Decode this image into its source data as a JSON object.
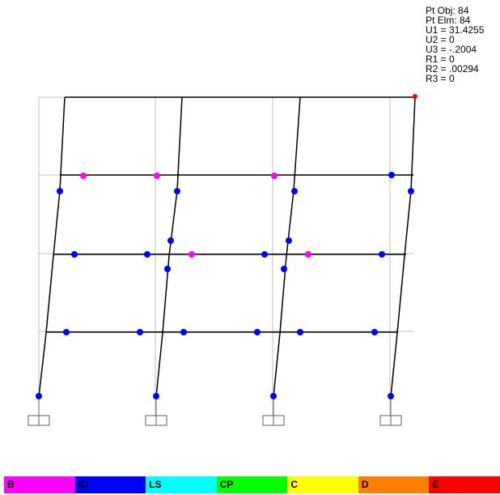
{
  "info_panel": {
    "lines": [
      "Pt Obj: 84",
      "Pt Elm: 84",
      "U1 = 31.4255",
      "U2 = 0",
      "U3 = -.2004",
      "R1 = 0",
      "R2 = .00294",
      "R3 = 0"
    ]
  },
  "legend": {
    "items": [
      {
        "label": "B",
        "color": "#ff00ff"
      },
      {
        "label": "IO",
        "color": "#0000ff"
      },
      {
        "label": "LS",
        "color": "#00ffff"
      },
      {
        "label": "CP",
        "color": "#00ff00"
      },
      {
        "label": "C",
        "color": "#ffff00"
      },
      {
        "label": "D",
        "color": "#ff8000"
      },
      {
        "label": "E",
        "color": "#ff0000"
      }
    ]
  },
  "colors": {
    "grid": "#c0c0c0",
    "frame": "#000000",
    "hinge_B": "#ff00ff",
    "hinge_IO": "#0000ff",
    "selected_point": "#ff0000"
  }
}
